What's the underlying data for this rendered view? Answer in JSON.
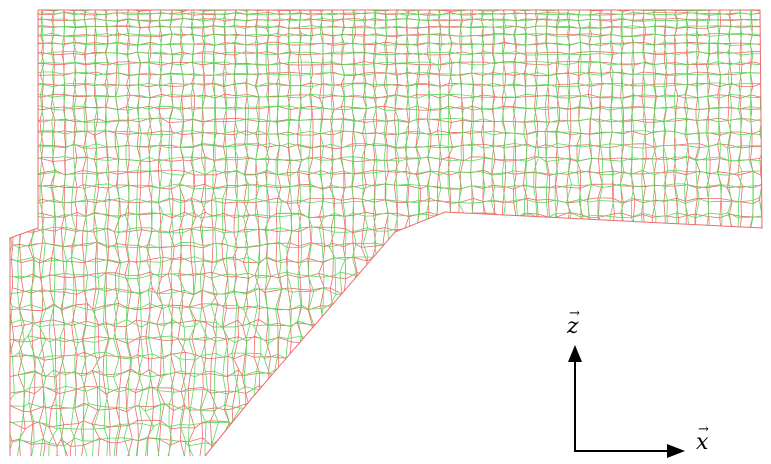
{
  "figure": {
    "mesh_colors": {
      "mesh_a": "#f06a6a",
      "mesh_b": "#5fd85f",
      "overlap": "#9a8a3a"
    },
    "axes": {
      "z_label": "z",
      "x_label": "x",
      "vector_mark": "→",
      "color": "#000000"
    }
  }
}
